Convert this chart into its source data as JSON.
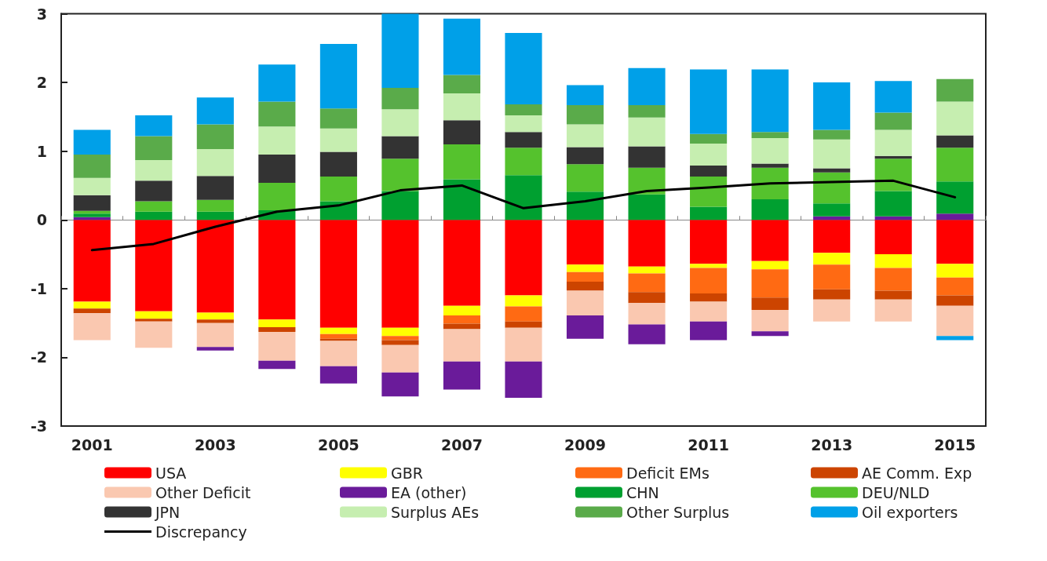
{
  "chart_data": {
    "type": "bar",
    "stacked": true,
    "categories": [
      "2001",
      null,
      "2003",
      null,
      "2005",
      null,
      "2007",
      null,
      "2009",
      null,
      "2011",
      null,
      "2013",
      null,
      "2015"
    ],
    "ylim": [
      -3,
      3
    ],
    "yticks": [
      -3,
      -2,
      -1,
      0,
      1,
      2,
      3
    ],
    "legend": "bottom",
    "marker": "none",
    "line_style": "solid",
    "series": [
      {
        "name": "USA",
        "color": "#ff0000",
        "values": [
          -1.19,
          -1.33,
          -1.35,
          -1.45,
          -1.57,
          -1.57,
          -1.25,
          -1.1,
          -0.65,
          -0.68,
          -0.64,
          -0.6,
          -0.48,
          -0.5,
          -0.64
        ]
      },
      {
        "name": "GBR",
        "color": "#ffff00",
        "values": [
          -0.1,
          -0.11,
          -0.1,
          -0.11,
          -0.09,
          -0.12,
          -0.14,
          -0.16,
          -0.11,
          -0.1,
          -0.06,
          -0.12,
          -0.17,
          -0.2,
          -0.2
        ]
      },
      {
        "name": "Deficit EMs",
        "color": "#ff6a13",
        "values": [
          0,
          0,
          0,
          0,
          -0.07,
          -0.06,
          -0.12,
          -0.22,
          -0.14,
          -0.27,
          -0.37,
          -0.41,
          -0.36,
          -0.33,
          -0.26
        ]
      },
      {
        "name": "AE Comm. Exp",
        "color": "#cc4400",
        "values": [
          -0.07,
          -0.04,
          -0.05,
          -0.07,
          -0.03,
          -0.07,
          -0.08,
          -0.09,
          -0.13,
          -0.16,
          -0.12,
          -0.18,
          -0.15,
          -0.13,
          -0.15
        ]
      },
      {
        "name": "Other Deficit",
        "color": "#fac8b0",
        "values": [
          -0.39,
          -0.38,
          -0.35,
          -0.42,
          -0.37,
          -0.4,
          -0.47,
          -0.49,
          -0.36,
          -0.31,
          -0.29,
          -0.31,
          -0.32,
          -0.32,
          -0.44
        ]
      },
      {
        "name": "EA (other)",
        "color": "#6a1b9a",
        "values": [
          0.04,
          0,
          -0.05,
          -0.12,
          -0.25,
          -0.35,
          -0.41,
          -0.53,
          -0.34,
          -0.29,
          -0.27,
          -0.07,
          0.05,
          0.05,
          0.09
        ]
      },
      {
        "name": "CHN",
        "color": "#00a030",
        "values": [
          0.05,
          0.12,
          0.12,
          0.14,
          0.27,
          0.42,
          0.59,
          0.65,
          0.41,
          0.37,
          0.19,
          0.3,
          0.19,
          0.37,
          0.47
        ]
      },
      {
        "name": "DEU/NLD",
        "color": "#55c22d",
        "values": [
          0.04,
          0.15,
          0.17,
          0.4,
          0.36,
          0.47,
          0.51,
          0.4,
          0.4,
          0.39,
          0.44,
          0.46,
          0.45,
          0.47,
          0.49
        ]
      },
      {
        "name": "JPN",
        "color": "#333333",
        "values": [
          0.23,
          0.3,
          0.35,
          0.41,
          0.36,
          0.33,
          0.35,
          0.23,
          0.25,
          0.31,
          0.16,
          0.06,
          0.06,
          0.04,
          0.18
        ]
      },
      {
        "name": "Surplus AEs",
        "color": "#c6eeb0",
        "values": [
          0.25,
          0.3,
          0.39,
          0.41,
          0.34,
          0.39,
          0.39,
          0.24,
          0.33,
          0.42,
          0.32,
          0.37,
          0.42,
          0.38,
          0.49
        ]
      },
      {
        "name": "Other Surplus",
        "color": "#5aab4a",
        "values": [
          0.34,
          0.35,
          0.36,
          0.36,
          0.29,
          0.31,
          0.27,
          0.16,
          0.28,
          0.18,
          0.14,
          0.09,
          0.14,
          0.25,
          0.33
        ]
      },
      {
        "name": "Oil exporters",
        "color": "#00a0e8",
        "values": [
          0.36,
          0.3,
          0.39,
          0.54,
          0.94,
          1.08,
          0.82,
          1.04,
          0.29,
          0.54,
          0.94,
          0.91,
          0.69,
          0.46,
          -0.06
        ]
      },
      {
        "name": "Discrepancy",
        "type": "line",
        "color": "#000000",
        "values": [
          -0.44,
          -0.35,
          -0.1,
          0.12,
          0.21,
          0.43,
          0.5,
          0.17,
          0.27,
          0.42,
          0.47,
          0.53,
          0.55,
          0.57,
          0.33
        ]
      }
    ]
  }
}
